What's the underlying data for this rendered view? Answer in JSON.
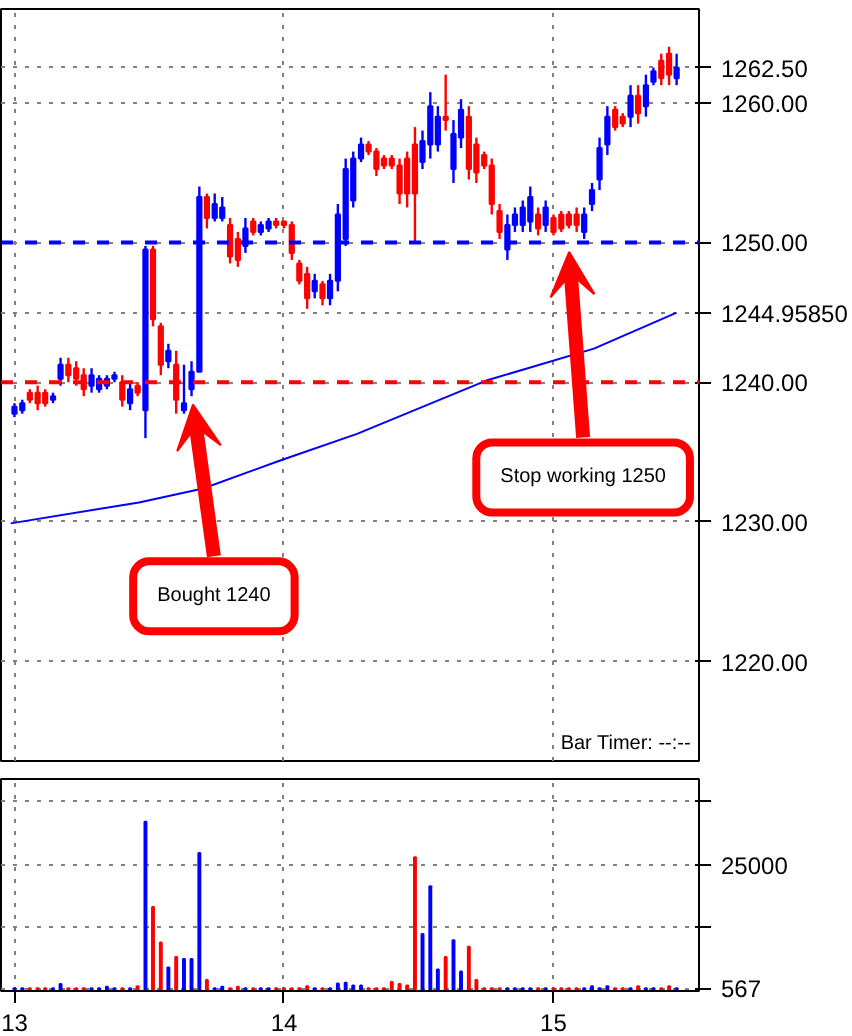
{
  "chart_data": [
    {
      "type": "candlestick",
      "x": [
        13.0,
        13.029,
        13.057,
        13.086,
        13.114,
        13.143,
        13.171,
        13.2,
        13.229,
        13.257,
        13.286,
        13.314,
        13.343,
        13.371,
        13.4,
        13.429,
        13.457,
        13.486,
        13.514,
        13.543,
        13.571,
        13.6,
        13.629,
        13.657,
        13.686,
        13.714,
        13.743,
        13.771,
        13.8,
        13.829,
        13.857,
        13.886,
        13.914,
        13.943,
        13.971,
        14.0,
        14.029,
        14.057,
        14.086,
        14.114,
        14.143,
        14.171,
        14.2,
        14.229,
        14.257,
        14.286,
        14.314,
        14.343,
        14.371,
        14.4,
        14.429,
        14.457,
        14.486,
        14.514,
        14.543,
        14.571,
        14.6,
        14.629,
        14.657,
        14.686,
        14.714,
        14.743,
        14.771,
        14.8,
        14.829,
        14.857,
        14.886,
        14.914,
        14.943,
        14.971,
        15.0,
        15.029,
        15.057,
        15.086,
        15.114,
        15.143,
        15.171,
        15.2,
        15.229,
        15.257,
        15.286,
        15.314,
        15.343,
        15.371,
        15.4,
        15.429,
        15.457
      ],
      "ohlc": [
        [
          1237.75,
          1238.5,
          1237.5,
          1238.25
        ],
        [
          1238,
          1238.75,
          1237.75,
          1238.5
        ],
        [
          1239.25,
          1239.5,
          1238.5,
          1238.75
        ],
        [
          1239.25,
          1239.75,
          1238,
          1238.5
        ],
        [
          1239.25,
          1239.5,
          1238.25,
          1238.5
        ],
        [
          1238.75,
          1239.25,
          1238.5,
          1239
        ],
        [
          1240.25,
          1241.75,
          1239.75,
          1241.25
        ],
        [
          1241.25,
          1241.75,
          1240,
          1240.5
        ],
        [
          1241,
          1241.5,
          1239.75,
          1240.25
        ],
        [
          1240.5,
          1241,
          1239,
          1239.5
        ],
        [
          1239.75,
          1241,
          1239.25,
          1240.5
        ],
        [
          1239.5,
          1240.5,
          1239.25,
          1240.25
        ],
        [
          1239.75,
          1240.5,
          1239.5,
          1240.25
        ],
        [
          1240.25,
          1240.75,
          1240,
          1240.5
        ],
        [
          1240,
          1240.5,
          1238.25,
          1238.75
        ],
        [
          1238.5,
          1240,
          1238,
          1239.5
        ],
        [
          1239.75,
          1240,
          1239,
          1239.25
        ],
        [
          1238,
          1249.75,
          1236,
          1249.5
        ],
        [
          1249.5,
          1249.75,
          1244,
          1244.5
        ],
        [
          1244,
          1244.25,
          1240.5,
          1241.25
        ],
        [
          1241.5,
          1242.75,
          1241,
          1242.25
        ],
        [
          1241.25,
          1242.25,
          1237.75,
          1238.75
        ],
        [
          1238,
          1241.25,
          1237.75,
          1238.5
        ],
        [
          1239.5,
          1241.5,
          1239,
          1240.75
        ],
        [
          1240.75,
          1254,
          1240.75,
          1253.25
        ],
        [
          1253.25,
          1253.5,
          1251,
          1251.75
        ],
        [
          1251.75,
          1253.5,
          1251.5,
          1252.75
        ],
        [
          1251.75,
          1253.25,
          1251.5,
          1252.5
        ],
        [
          1251.25,
          1251.75,
          1248.5,
          1249
        ],
        [
          1250.25,
          1250.75,
          1248.25,
          1248.75
        ],
        [
          1249.75,
          1251.75,
          1249.25,
          1251
        ],
        [
          1251.5,
          1251.75,
          1250.5,
          1250.75
        ],
        [
          1250.75,
          1251.5,
          1250.5,
          1251.25
        ],
        [
          1251,
          1251.75,
          1250.75,
          1251.5
        ],
        [
          1251.5,
          1251.75,
          1251,
          1251.25
        ],
        [
          1251.5,
          1251.5,
          1251,
          1251.25
        ],
        [
          1251.25,
          1251.5,
          1248.75,
          1249.25
        ],
        [
          1248.5,
          1248.75,
          1247,
          1247.25
        ],
        [
          1247.75,
          1248.25,
          1245.25,
          1246
        ],
        [
          1246.5,
          1247.75,
          1246,
          1247.25
        ],
        [
          1247,
          1247.25,
          1245.5,
          1246
        ],
        [
          1246,
          1247.75,
          1245.5,
          1247.25
        ],
        [
          1247.25,
          1252.75,
          1246.5,
          1252
        ],
        [
          1250.25,
          1256,
          1249.75,
          1255.25
        ],
        [
          1253,
          1256.5,
          1252.5,
          1256
        ],
        [
          1256,
          1257.5,
          1255.75,
          1257
        ],
        [
          1257,
          1257.25,
          1256.25,
          1256.5
        ],
        [
          1256.5,
          1256.75,
          1254.75,
          1255.25
        ],
        [
          1256,
          1256.25,
          1255.25,
          1255.5
        ],
        [
          1256,
          1256.25,
          1255.25,
          1255.5
        ],
        [
          1255.5,
          1256,
          1252.75,
          1253.5
        ],
        [
          1256,
          1256.5,
          1252.5,
          1253.5
        ],
        [
          1257,
          1258.25,
          1250,
          1253.5
        ],
        [
          1255.75,
          1258,
          1255.25,
          1257.25
        ],
        [
          1257,
          1260.75,
          1256,
          1259.75
        ],
        [
          1257,
          1259.75,
          1256.5,
          1259
        ],
        [
          1259,
          1262,
          1258,
          1258.75
        ],
        [
          1255.25,
          1258.75,
          1254.25,
          1257.75
        ],
        [
          1257.5,
          1260.25,
          1256.75,
          1259.5
        ],
        [
          1259,
          1259.75,
          1254.5,
          1255.25
        ],
        [
          1257,
          1257.5,
          1254.25,
          1255
        ],
        [
          1256.25,
          1256.5,
          1255.25,
          1255.5
        ],
        [
          1255.5,
          1256,
          1252,
          1252.75
        ],
        [
          1252.25,
          1252.75,
          1250.25,
          1250.75
        ],
        [
          1249.5,
          1252,
          1248.75,
          1251.25
        ],
        [
          1251.25,
          1252.5,
          1250.75,
          1252
        ],
        [
          1251.25,
          1253,
          1250.75,
          1252.5
        ],
        [
          1251.5,
          1254,
          1250.75,
          1253.25
        ],
        [
          1252,
          1252.5,
          1250.5,
          1251
        ],
        [
          1251.25,
          1253,
          1250.75,
          1252.5
        ],
        [
          1251.75,
          1252,
          1250.5,
          1250.75
        ],
        [
          1252,
          1252.25,
          1250.75,
          1251
        ],
        [
          1252,
          1252.25,
          1251,
          1251.25
        ],
        [
          1252,
          1252.5,
          1250.75,
          1251.25
        ],
        [
          1250.75,
          1252.5,
          1250.25,
          1252
        ],
        [
          1252.75,
          1254.25,
          1252.25,
          1253.75
        ],
        [
          1254.5,
          1257.5,
          1253.75,
          1256.75
        ],
        [
          1257,
          1259.75,
          1256.25,
          1259
        ],
        [
          1259.5,
          1259.75,
          1258,
          1258.25
        ],
        [
          1259,
          1259.25,
          1258.25,
          1258.5
        ],
        [
          1259,
          1261.25,
          1258.25,
          1260.5
        ],
        [
          1260.5,
          1261.25,
          1258.5,
          1259.25
        ],
        [
          1259.75,
          1262,
          1259,
          1261.25
        ],
        [
          1261.5,
          1262.5,
          1261.25,
          1262.25
        ],
        [
          1263,
          1263.5,
          1261.25,
          1261.75
        ],
        [
          1263.5,
          1264,
          1261.25,
          1262
        ],
        [
          1261.75,
          1263.5,
          1261.25,
          1262.5
        ]
      ],
      "colors": [
        "#0000ff",
        "#0000ff",
        "#ff0000",
        "#ff0000",
        "#ff0000",
        "#0000ff",
        "#0000ff",
        "#ff0000",
        "#ff0000",
        "#ff0000",
        "#0000ff",
        "#0000ff",
        "#0000ff",
        "#0000ff",
        "#ff0000",
        "#0000ff",
        "#ff0000",
        "#0000ff",
        "#ff0000",
        "#ff0000",
        "#0000ff",
        "#ff0000",
        "#0000ff",
        "#0000ff",
        "#0000ff",
        "#ff0000",
        "#0000ff",
        "#0000ff",
        "#ff0000",
        "#ff0000",
        "#0000ff",
        "#ff0000",
        "#0000ff",
        "#0000ff",
        "#ff0000",
        "#ff0000",
        "#ff0000",
        "#ff0000",
        "#ff0000",
        "#0000ff",
        "#ff0000",
        "#0000ff",
        "#0000ff",
        "#0000ff",
        "#0000ff",
        "#0000ff",
        "#ff0000",
        "#ff0000",
        "#ff0000",
        "#ff0000",
        "#ff0000",
        "#ff0000",
        "#ff0000",
        "#0000ff",
        "#0000ff",
        "#0000ff",
        "#ff0000",
        "#0000ff",
        "#0000ff",
        "#ff0000",
        "#ff0000",
        "#ff0000",
        "#ff0000",
        "#ff0000",
        "#0000ff",
        "#0000ff",
        "#0000ff",
        "#0000ff",
        "#ff0000",
        "#0000ff",
        "#ff0000",
        "#ff0000",
        "#ff0000",
        "#ff0000",
        "#0000ff",
        "#0000ff",
        "#0000ff",
        "#0000ff",
        "#ff0000",
        "#ff0000",
        "#0000ff",
        "#ff0000",
        "#0000ff",
        "#0000ff",
        "#ff0000",
        "#ff0000",
        "#0000ff"
      ],
      "series": [
        {
          "type": "line",
          "color": "#0000ff",
          "x": [
            12.986,
            13.462,
            13.7,
            13.986,
            14.271,
            14.748,
            15.15,
            15.455
          ],
          "values": [
            1229.9,
            1231.4,
            1232.4,
            1234.4,
            1236.3,
            1240.1,
            1242.4,
            1244.9585
          ]
        }
      ],
      "ref_lines": [
        {
          "axis": "y",
          "value": 1250,
          "color": "#0000ff",
          "line_style": "dashed"
        },
        {
          "axis": "y",
          "value": 1240,
          "color": "#ff0000",
          "line_style": "dashed"
        }
      ],
      "annotations": [
        "Bought 1240",
        "Stop working 1250",
        "Bar Timer: --:--"
      ],
      "xlim": [
        12.95,
        15.54
      ],
      "ylim": [
        1212.9,
        1266.7
      ],
      "xticks": [
        13,
        14,
        15
      ],
      "yticks": [
        {
          "value": 1220,
          "label": "1220.00"
        },
        {
          "value": 1230,
          "label": "1230.00"
        },
        {
          "value": 1240,
          "label": "1240.00"
        },
        {
          "value": 1244.9585,
          "label": "1244.95850"
        },
        {
          "value": 1250,
          "label": "1250.00"
        },
        {
          "value": 1260,
          "label": "1260.00"
        },
        {
          "value": 1262.5,
          "label": "1262.50"
        }
      ],
      "tick_labels": "y",
      "grid": true
    },
    {
      "type": "bar",
      "x": [
        13.0,
        13.029,
        13.057,
        13.086,
        13.114,
        13.143,
        13.171,
        13.2,
        13.229,
        13.257,
        13.286,
        13.314,
        13.343,
        13.371,
        13.4,
        13.429,
        13.457,
        13.486,
        13.514,
        13.543,
        13.571,
        13.6,
        13.629,
        13.657,
        13.686,
        13.714,
        13.743,
        13.771,
        13.8,
        13.829,
        13.857,
        13.886,
        13.914,
        13.943,
        13.971,
        14.0,
        14.029,
        14.057,
        14.086,
        14.114,
        14.143,
        14.171,
        14.2,
        14.229,
        14.257,
        14.286,
        14.314,
        14.343,
        14.371,
        14.4,
        14.429,
        14.457,
        14.486,
        14.514,
        14.543,
        14.571,
        14.6,
        14.629,
        14.657,
        14.686,
        14.714,
        14.743,
        14.771,
        14.8,
        14.829,
        14.857,
        14.886,
        14.914,
        14.943,
        14.971,
        15.0,
        15.029,
        15.057,
        15.086,
        15.114,
        15.143,
        15.171,
        15.2,
        15.229,
        15.257,
        15.286,
        15.314,
        15.343,
        15.371,
        15.4,
        15.429,
        15.457
      ],
      "values": [
        550,
        550,
        550,
        550,
        550,
        550,
        1370,
        550,
        550,
        550,
        550,
        550,
        820,
        550,
        550,
        550,
        960,
        33530,
        16630,
        9620,
        4670,
        6730,
        6320,
        6320,
        27340,
        2200,
        550,
        820,
        550,
        820,
        550,
        550,
        550,
        550,
        550,
        550,
        550,
        550,
        960,
        550,
        550,
        550,
        1510,
        1650,
        1100,
        1100,
        550,
        550,
        550,
        1790,
        1370,
        1100,
        26520,
        11270,
        20750,
        4260,
        6730,
        10030,
        3850,
        8790,
        2200,
        550,
        550,
        550,
        550,
        550,
        550,
        550,
        550,
        550,
        550,
        550,
        550,
        550,
        550,
        960,
        550,
        960,
        550,
        550,
        550,
        960,
        550,
        550,
        550,
        960,
        567
      ],
      "colors": [
        "#0000ff",
        "#0000ff",
        "#ff0000",
        "#ff0000",
        "#ff0000",
        "#0000ff",
        "#0000ff",
        "#ff0000",
        "#ff0000",
        "#ff0000",
        "#0000ff",
        "#0000ff",
        "#0000ff",
        "#0000ff",
        "#ff0000",
        "#0000ff",
        "#ff0000",
        "#0000ff",
        "#ff0000",
        "#ff0000",
        "#0000ff",
        "#ff0000",
        "#0000ff",
        "#0000ff",
        "#0000ff",
        "#ff0000",
        "#0000ff",
        "#0000ff",
        "#ff0000",
        "#ff0000",
        "#0000ff",
        "#ff0000",
        "#0000ff",
        "#0000ff",
        "#ff0000",
        "#ff0000",
        "#ff0000",
        "#ff0000",
        "#ff0000",
        "#0000ff",
        "#ff0000",
        "#0000ff",
        "#0000ff",
        "#0000ff",
        "#0000ff",
        "#0000ff",
        "#ff0000",
        "#ff0000",
        "#ff0000",
        "#ff0000",
        "#ff0000",
        "#ff0000",
        "#ff0000",
        "#0000ff",
        "#0000ff",
        "#0000ff",
        "#ff0000",
        "#0000ff",
        "#0000ff",
        "#ff0000",
        "#ff0000",
        "#ff0000",
        "#ff0000",
        "#ff0000",
        "#0000ff",
        "#0000ff",
        "#0000ff",
        "#0000ff",
        "#ff0000",
        "#0000ff",
        "#ff0000",
        "#ff0000",
        "#ff0000",
        "#ff0000",
        "#0000ff",
        "#0000ff",
        "#0000ff",
        "#0000ff",
        "#ff0000",
        "#ff0000",
        "#0000ff",
        "#ff0000",
        "#0000ff",
        "#0000ff",
        "#ff0000",
        "#ff0000",
        "#0000ff"
      ],
      "xlim": [
        12.95,
        15.54
      ],
      "ylim": [
        0,
        42000
      ],
      "xticks": [
        13,
        14,
        15
      ],
      "yticks": [
        567,
        {
          "value": 12500,
          "label": null
        },
        25000,
        {
          "value": 37500,
          "label": null
        }
      ],
      "grid": true
    }
  ]
}
